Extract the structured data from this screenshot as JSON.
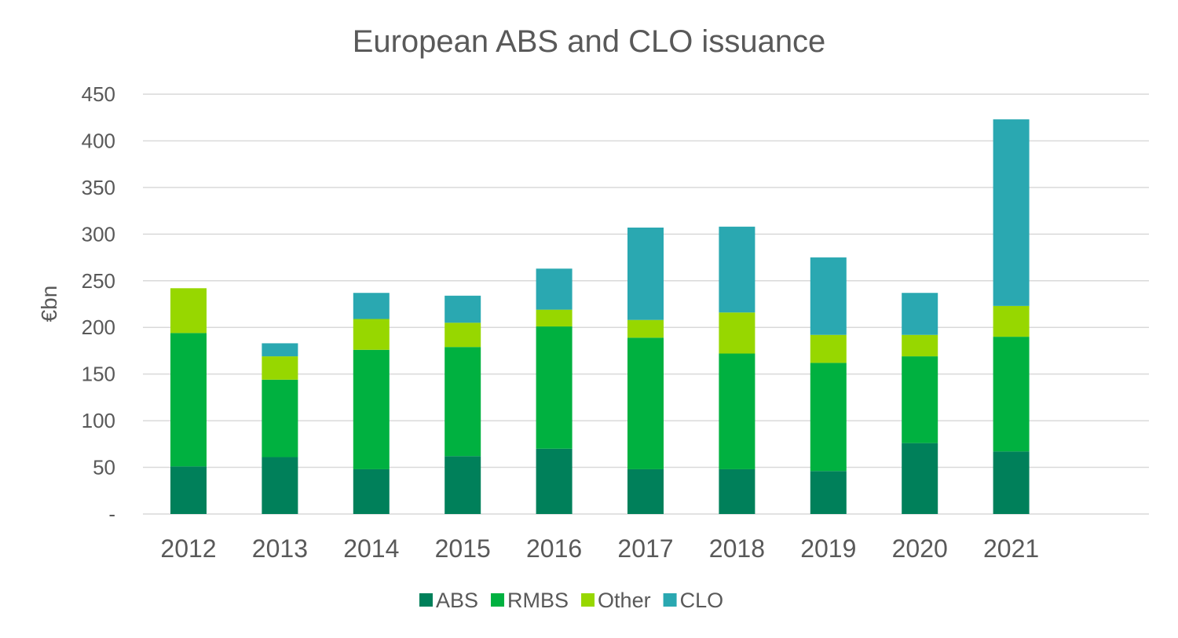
{
  "chart_data": {
    "type": "bar",
    "stacked": true,
    "title": "European ABS and CLO issuance",
    "xlabel": "",
    "ylabel": "€bn",
    "ylim": [
      0,
      450
    ],
    "yticks": [
      {
        "value": 0,
        "label": "-"
      },
      {
        "value": 50,
        "label": "50"
      },
      {
        "value": 100,
        "label": "100"
      },
      {
        "value": 150,
        "label": "150"
      },
      {
        "value": 200,
        "label": "200"
      },
      {
        "value": 250,
        "label": "250"
      },
      {
        "value": 300,
        "label": "300"
      },
      {
        "value": 350,
        "label": "350"
      },
      {
        "value": 400,
        "label": "400"
      },
      {
        "value": 450,
        "label": "450"
      }
    ],
    "grid": true,
    "legend": "bottom",
    "categories": [
      "2012",
      "2013",
      "2014",
      "2015",
      "2016",
      "2017",
      "2018",
      "2019",
      "2020",
      "2021"
    ],
    "series": [
      {
        "name": "ABS",
        "color": "#00805a",
        "values": [
          51,
          61,
          48,
          62,
          70,
          48,
          48,
          46,
          76,
          67
        ]
      },
      {
        "name": "RMBS",
        "color": "#00b140",
        "values": [
          143,
          83,
          128,
          117,
          131,
          141,
          124,
          116,
          93,
          123
        ]
      },
      {
        "name": "Other",
        "color": "#97d700",
        "values": [
          48,
          25,
          33,
          26,
          18,
          19,
          44,
          30,
          23,
          33
        ]
      },
      {
        "name": "CLO",
        "color": "#2aa8b1",
        "values": [
          0,
          14,
          28,
          29,
          44,
          99,
          92,
          83,
          45,
          200
        ]
      }
    ]
  }
}
